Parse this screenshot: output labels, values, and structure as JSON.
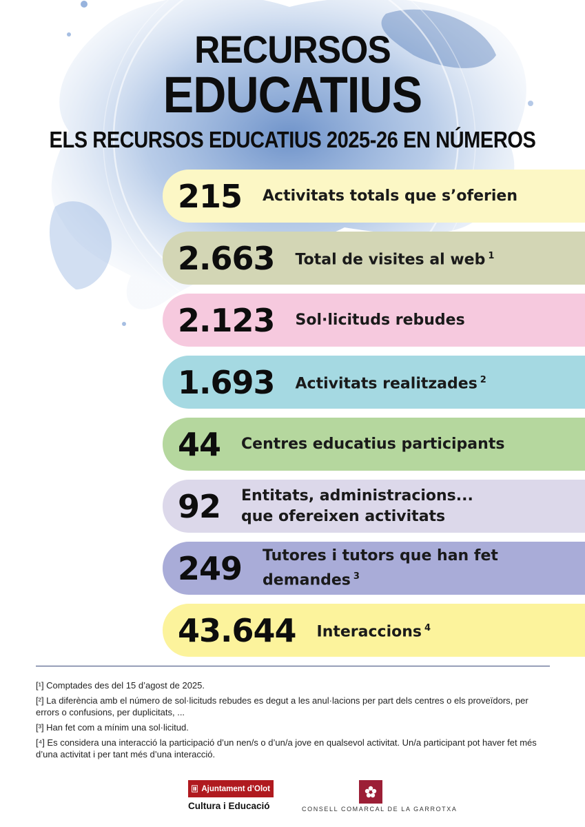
{
  "header": {
    "title_line1": "RECURSOS",
    "title_line2": "EDUCATIUS",
    "subtitle": "ELS RECURSOS EDUCATIUS 2025-26 EN NÚMEROS"
  },
  "stats": [
    {
      "number": "215",
      "label_line1": "Activitats totals que s’oferien",
      "label_line2": "",
      "note": "",
      "color": "#fcf7c5"
    },
    {
      "number": "2.663",
      "label_line1": "Total de visites al web",
      "label_line2": "",
      "note": "1",
      "color": "#d3d6b5"
    },
    {
      "number": "2.123",
      "label_line1": "Sol·licituds rebudes",
      "label_line2": "",
      "note": "",
      "color": "#f6c9de"
    },
    {
      "number": "1.693",
      "label_line1": "Activitats realitzades",
      "label_line2": "",
      "note": "2",
      "color": "#a5d9e2"
    },
    {
      "number": "44",
      "label_line1": "Centres educatius participants",
      "label_line2": "",
      "note": "",
      "color": "#b5d79e"
    },
    {
      "number": "92",
      "label_line1": "Entitats, administracions...",
      "label_line2": "que ofereixen activitats",
      "note": "",
      "color": "#dcd8ea"
    },
    {
      "number": "249",
      "label_line1": "Tutores i tutors que han fet",
      "label_line2": "demandes",
      "note": "3",
      "color": "#a9acd8"
    },
    {
      "number": "43.644",
      "label_line1": "Interaccions",
      "label_line2": "",
      "note": "4",
      "color": "#fcf39c"
    }
  ],
  "footnotes": [
    "[¹] Comptades des del 15 d’agost de 2025.",
    "[²] La diferència amb el número de sol·licituds rebudes es degut a les anul·lacions per part dels centres o els proveïdors, per errors o confusions, per duplicitats, ...",
    "[³] Han fet com a mínim una sol·licitud.",
    "[⁴] Es considera una interacció la participació d’un nen/s o d’un/a jove en qualsevol activitat. Un/a participant pot haver fet més d’una activitat i per tant més d’una interacció."
  ],
  "logos": {
    "olot_name": "Ajuntament d’Olot",
    "olot_sub": "Cultura i Educació",
    "garrotxa_name": "CONSELL COMARCAL DE LA GARROTXA",
    "olot_color": "#b01a1f",
    "garrotxa_color": "#9c1f36"
  },
  "theme": {
    "splash_color": "#7fa3d6"
  }
}
